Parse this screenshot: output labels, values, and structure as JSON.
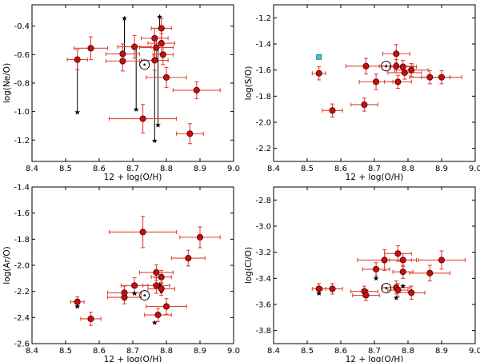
{
  "figure": {
    "colors": {
      "errorbar": "#e0453a",
      "marker_fill": "#c40f0f",
      "marker_edge": "#5a0000",
      "star": "#000000",
      "sun": "#000000",
      "square_fill": "#33cccc",
      "square_edge": "#1b6e6e"
    },
    "panels_order": [
      "ne_o",
      "s_o",
      "ar_o",
      "cl_o"
    ]
  },
  "chart_data": [
    {
      "id": "ne_o",
      "type": "scatter",
      "title": "",
      "xlabel": "12 + log(O/H)",
      "ylabel": "log(Ne/O)",
      "xlim": [
        8.4,
        9.0
      ],
      "ylim": [
        -1.35,
        -0.25
      ],
      "xticks": [
        "8.4",
        "8.5",
        "8.6",
        "8.7",
        "8.8",
        "8.9",
        "9.0"
      ],
      "xtick_values": [
        8.4,
        8.5,
        8.6,
        8.7,
        8.8,
        8.9,
        9.0
      ],
      "yticks": [
        "-1.2",
        "-1.0",
        "-0.8",
        "-0.6",
        "-0.4"
      ],
      "ytick_values": [
        -1.2,
        -1.0,
        -0.8,
        -0.6,
        -0.4
      ],
      "sun": {
        "x": 8.735,
        "y": -0.67
      },
      "points": [
        {
          "x": 8.535,
          "y": -0.635,
          "xerr": 0.03,
          "yerr": 0.07
        },
        {
          "x": 8.575,
          "y": -0.555,
          "xerr": 0.05,
          "yerr": 0.08
        },
        {
          "x": 8.67,
          "y": -0.595,
          "xerr": 0.05,
          "yerr": 0.07
        },
        {
          "x": 8.67,
          "y": -0.645,
          "xerr": 0.05,
          "yerr": 0.07
        },
        {
          "x": 8.705,
          "y": -0.545,
          "xerr": 0.05,
          "yerr": 0.08
        },
        {
          "x": 8.765,
          "y": -0.485,
          "xerr": 0.04,
          "yerr": 0.07
        },
        {
          "x": 8.77,
          "y": -0.55,
          "xerr": 0.05,
          "yerr": 0.07
        },
        {
          "x": 8.765,
          "y": -0.64,
          "xerr": 0.04,
          "yerr": 0.07
        },
        {
          "x": 8.785,
          "y": -0.415,
          "xerr": 0.03,
          "yerr": 0.07
        },
        {
          "x": 8.785,
          "y": -0.52,
          "xerr": 0.04,
          "yerr": 0.07
        },
        {
          "x": 8.79,
          "y": -0.6,
          "xerr": 0.03,
          "yerr": 0.07
        },
        {
          "x": 8.8,
          "y": -0.76,
          "xerr": 0.06,
          "yerr": 0.07
        },
        {
          "x": 8.73,
          "y": -1.05,
          "xerr": 0.1,
          "yerr": 0.1
        },
        {
          "x": 8.89,
          "y": -0.85,
          "xerr": 0.07,
          "yerr": 0.06
        },
        {
          "x": 8.87,
          "y": -1.155,
          "xerr": 0.04,
          "yerr": 0.07
        }
      ],
      "stars": [
        {
          "x": 8.535,
          "y": -1.005,
          "link": -0.635
        },
        {
          "x": 8.675,
          "y": -0.345,
          "link": -0.595
        },
        {
          "x": 8.71,
          "y": -0.985,
          "link": -0.545
        },
        {
          "x": 8.765,
          "y": -1.205,
          "link": -0.485
        },
        {
          "x": 8.775,
          "y": -1.095,
          "link": -0.55
        },
        {
          "x": 8.78,
          "y": -0.335,
          "link": -0.415
        }
      ],
      "squares": []
    },
    {
      "id": "s_o",
      "type": "scatter",
      "title": "",
      "xlabel": "12 + log(O/H)",
      "ylabel": "log(S/O)",
      "xlim": [
        8.4,
        9.0
      ],
      "ylim": [
        -2.3,
        -1.1
      ],
      "xticks": [
        "8.4",
        "8.5",
        "8.6",
        "8.7",
        "8.8",
        "8.9",
        "9.0"
      ],
      "xtick_values": [
        8.4,
        8.5,
        8.6,
        8.7,
        8.8,
        8.9,
        9.0
      ],
      "yticks": [
        "-2.2",
        "-2.0",
        "-1.8",
        "-1.6",
        "-1.4",
        "-1.2"
      ],
      "ytick_values": [
        -2.2,
        -2.0,
        -1.8,
        -1.6,
        -1.4,
        -1.2
      ],
      "sun": {
        "x": 8.735,
        "y": -1.57
      },
      "points": [
        {
          "x": 8.535,
          "y": -1.625,
          "xerr": 0.02,
          "yerr": 0.05
        },
        {
          "x": 8.575,
          "y": -1.91,
          "xerr": 0.03,
          "yerr": 0.05
        },
        {
          "x": 8.67,
          "y": -1.865,
          "xerr": 0.04,
          "yerr": 0.05
        },
        {
          "x": 8.675,
          "y": -1.57,
          "xerr": 0.06,
          "yerr": 0.06
        },
        {
          "x": 8.705,
          "y": -1.69,
          "xerr": 0.05,
          "yerr": 0.06
        },
        {
          "x": 8.765,
          "y": -1.475,
          "xerr": 0.04,
          "yerr": 0.07
        },
        {
          "x": 8.765,
          "y": -1.57,
          "xerr": 0.05,
          "yerr": 0.05
        },
        {
          "x": 8.77,
          "y": -1.69,
          "xerr": 0.04,
          "yerr": 0.05
        },
        {
          "x": 8.785,
          "y": -1.575,
          "xerr": 0.04,
          "yerr": 0.05
        },
        {
          "x": 8.79,
          "y": -1.62,
          "xerr": 0.05,
          "yerr": 0.05
        },
        {
          "x": 8.81,
          "y": -1.6,
          "xerr": 0.05,
          "yerr": 0.05
        },
        {
          "x": 8.865,
          "y": -1.655,
          "xerr": 0.06,
          "yerr": 0.05
        },
        {
          "x": 8.9,
          "y": -1.655,
          "xerr": 0.06,
          "yerr": 0.05
        }
      ],
      "stars": [],
      "squares": [
        {
          "x": 8.535,
          "y": -1.5
        }
      ]
    },
    {
      "id": "ar_o",
      "type": "scatter",
      "title": "",
      "xlabel": "12 + log(O/H)",
      "ylabel": "log(Ar/O)",
      "xlim": [
        8.4,
        9.0
      ],
      "ylim": [
        -2.6,
        -1.4
      ],
      "xticks": [
        "8.4",
        "8.5",
        "8.6",
        "8.7",
        "8.8",
        "8.9",
        "9.0"
      ],
      "xtick_values": [
        8.4,
        8.5,
        8.6,
        8.7,
        8.8,
        8.9,
        9.0
      ],
      "yticks": [
        "-2.6",
        "-2.4",
        "-2.2",
        "-2.0",
        "-1.8",
        "-1.6",
        "-1.4"
      ],
      "ytick_values": [
        -2.6,
        -2.4,
        -2.2,
        -2.0,
        -1.8,
        -1.6,
        -1.4
      ],
      "sun": {
        "x": 8.735,
        "y": -2.23
      },
      "points": [
        {
          "x": 8.535,
          "y": -2.28,
          "xerr": 0.02,
          "yerr": 0.04
        },
        {
          "x": 8.575,
          "y": -2.41,
          "xerr": 0.03,
          "yerr": 0.05
        },
        {
          "x": 8.675,
          "y": -2.245,
          "xerr": 0.05,
          "yerr": 0.05
        },
        {
          "x": 8.675,
          "y": -2.21,
          "xerr": 0.05,
          "yerr": 0.05
        },
        {
          "x": 8.705,
          "y": -2.155,
          "xerr": 0.04,
          "yerr": 0.06
        },
        {
          "x": 8.73,
          "y": -1.745,
          "xerr": 0.1,
          "yerr": 0.12
        },
        {
          "x": 8.77,
          "y": -2.055,
          "xerr": 0.05,
          "yerr": 0.06
        },
        {
          "x": 8.77,
          "y": -2.155,
          "xerr": 0.04,
          "yerr": 0.06
        },
        {
          "x": 8.785,
          "y": -2.09,
          "xerr": 0.03,
          "yerr": 0.05
        },
        {
          "x": 8.785,
          "y": -2.18,
          "xerr": 0.04,
          "yerr": 0.05
        },
        {
          "x": 8.775,
          "y": -2.38,
          "xerr": 0.04,
          "yerr": 0.05
        },
        {
          "x": 8.8,
          "y": -2.315,
          "xerr": 0.06,
          "yerr": 0.06
        },
        {
          "x": 8.865,
          "y": -1.945,
          "xerr": 0.05,
          "yerr": 0.06
        },
        {
          "x": 8.9,
          "y": -1.785,
          "xerr": 0.06,
          "yerr": 0.08
        }
      ],
      "stars": [
        {
          "x": 8.535,
          "y": -2.315
        },
        {
          "x": 8.675,
          "y": -2.255
        },
        {
          "x": 8.705,
          "y": -2.215
        },
        {
          "x": 8.765,
          "y": -2.44
        },
        {
          "x": 8.78,
          "y": -2.15
        },
        {
          "x": 8.785,
          "y": -2.2
        }
      ],
      "squares": []
    },
    {
      "id": "cl_o",
      "type": "scatter",
      "title": "",
      "xlabel": "12 + log(O/H)",
      "ylabel": "log(Cl/O)",
      "xlim": [
        8.4,
        9.0
      ],
      "ylim": [
        -3.9,
        -2.7
      ],
      "xticks": [
        "8.4",
        "8.5",
        "8.6",
        "8.7",
        "8.8",
        "8.9",
        "9.0"
      ],
      "xtick_values": [
        8.4,
        8.5,
        8.6,
        8.7,
        8.8,
        8.9,
        9.0
      ],
      "yticks": [
        "-3.8",
        "-3.6",
        "-3.4",
        "-3.2",
        "-3.0",
        "-2.8"
      ],
      "ytick_values": [
        -3.8,
        -3.6,
        -3.4,
        -3.2,
        -3.0,
        -2.8
      ],
      "sun": {
        "x": 8.735,
        "y": -3.475
      },
      "points": [
        {
          "x": 8.535,
          "y": -3.48,
          "xerr": 0.02,
          "yerr": 0.04
        },
        {
          "x": 8.575,
          "y": -3.48,
          "xerr": 0.03,
          "yerr": 0.04
        },
        {
          "x": 8.67,
          "y": -3.5,
          "xerr": 0.04,
          "yerr": 0.04
        },
        {
          "x": 8.675,
          "y": -3.53,
          "xerr": 0.04,
          "yerr": 0.04
        },
        {
          "x": 8.705,
          "y": -3.33,
          "xerr": 0.04,
          "yerr": 0.05
        },
        {
          "x": 8.73,
          "y": -3.26,
          "xerr": 0.08,
          "yerr": 0.08
        },
        {
          "x": 8.77,
          "y": -3.21,
          "xerr": 0.04,
          "yerr": 0.06
        },
        {
          "x": 8.765,
          "y": -3.47,
          "xerr": 0.04,
          "yerr": 0.05
        },
        {
          "x": 8.785,
          "y": -3.35,
          "xerr": 0.03,
          "yerr": 0.05
        },
        {
          "x": 8.785,
          "y": -3.26,
          "xerr": 0.04,
          "yerr": 0.05
        },
        {
          "x": 8.77,
          "y": -3.49,
          "xerr": 0.03,
          "yerr": 0.05
        },
        {
          "x": 8.81,
          "y": -3.51,
          "xerr": 0.04,
          "yerr": 0.05
        },
        {
          "x": 8.865,
          "y": -3.36,
          "xerr": 0.06,
          "yerr": 0.06
        },
        {
          "x": 8.9,
          "y": -3.26,
          "xerr": 0.07,
          "yerr": 0.07
        }
      ],
      "stars": [
        {
          "x": 8.535,
          "y": -3.515
        },
        {
          "x": 8.675,
          "y": -3.495
        },
        {
          "x": 8.705,
          "y": -3.4
        },
        {
          "x": 8.765,
          "y": -3.55
        },
        {
          "x": 8.785,
          "y": -3.46
        }
      ],
      "squares": []
    }
  ]
}
